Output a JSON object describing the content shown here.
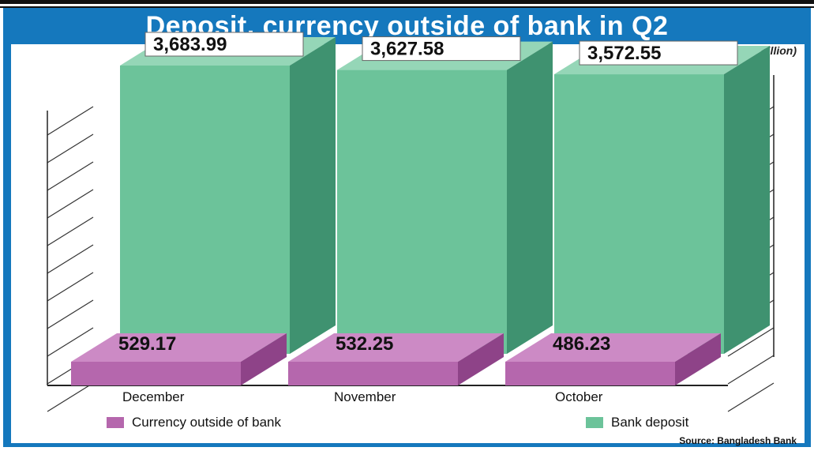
{
  "title": "Deposit, currency outside of bank in Q2",
  "unit_note": "(Tk in billion)",
  "source": "Source: Bangladesh Bank",
  "chart_data": {
    "type": "bar",
    "categories": [
      "December",
      "November",
      "October"
    ],
    "series": [
      {
        "name": "Bank deposit",
        "values": [
          3683.99,
          3627.58,
          3572.55
        ],
        "labels": [
          "3,683.99",
          "3,627.58",
          "3,572.55"
        ],
        "color": "#6cc39a"
      },
      {
        "name": "Currency outside of bank",
        "values": [
          529.17,
          532.25,
          486.23
        ],
        "labels": [
          "529.17",
          "532.25",
          "486.23"
        ],
        "color": "#b567ad"
      }
    ],
    "legend_position": "bottom",
    "grid": true
  },
  "colors": {
    "banner": "#1578bd",
    "deposit_front": "#6cc39a",
    "deposit_side": "#3f9270",
    "deposit_top": "#95d6b7",
    "currency_front": "#b567ad",
    "currency_side": "#8e4388",
    "currency_top": "#cc8ac5"
  }
}
